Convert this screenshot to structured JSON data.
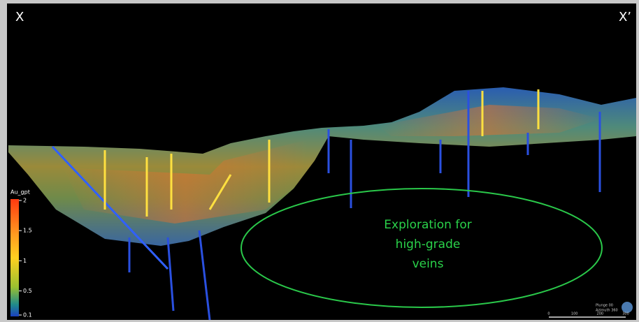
{
  "section": {
    "left_label": "X",
    "right_label": "X’"
  },
  "colorbar": {
    "title": "Au_gpt",
    "range": [
      0.1,
      2
    ],
    "ticks": [
      2,
      1.5,
      1,
      0.5,
      0.1
    ]
  },
  "annotation": {
    "lines": [
      "Exploration for",
      "high-grade",
      "veins"
    ]
  },
  "view": {
    "plunge": "Plunge 00",
    "azimuth": "Azimuth 360"
  },
  "scale_bar": {
    "labels": [
      "0",
      "100",
      "200",
      "300"
    ]
  }
}
